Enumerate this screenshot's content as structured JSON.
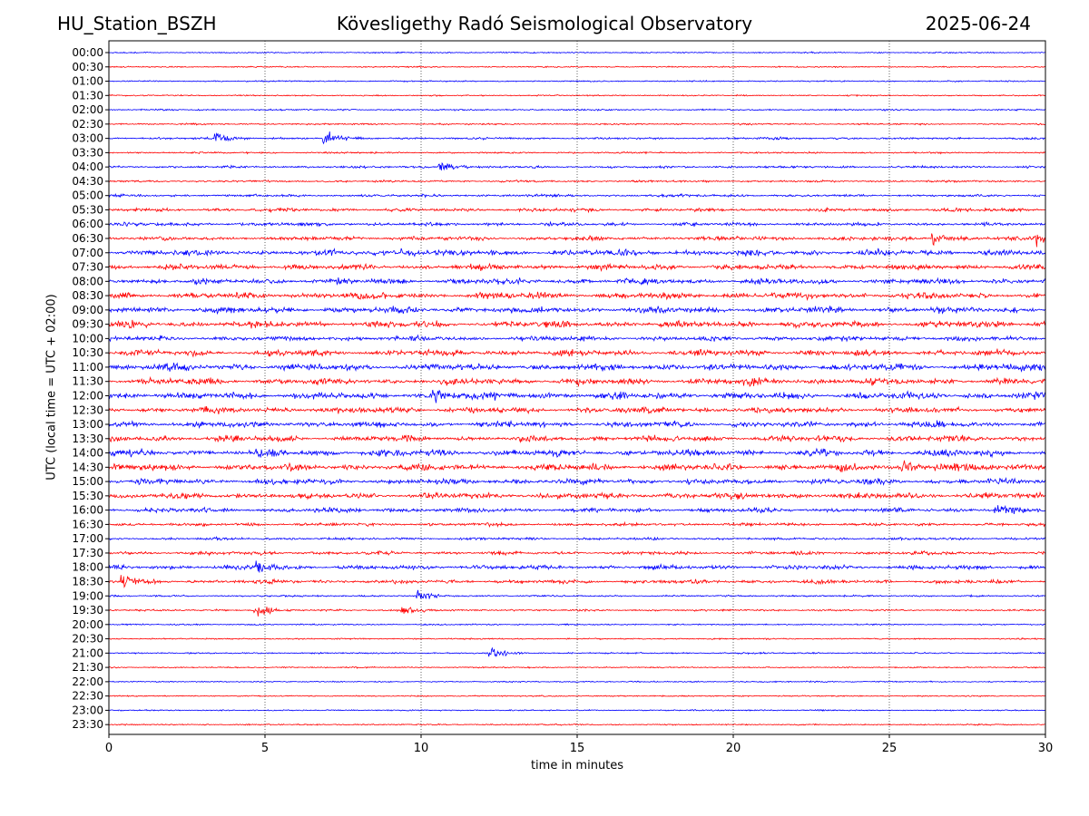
{
  "header": {
    "station": "HU_Station_BSZH",
    "title": "Kövesligethy Radó Seismological Observatory",
    "date": "2025-06-24"
  },
  "chart_data": {
    "type": "line",
    "title": "Kövesligethy Radó Seismological Observatory",
    "xlabel": "time in minutes",
    "ylabel": "UTC (local time = UTC + 02:00)",
    "xlim": [
      0,
      30
    ],
    "xticks": [
      0,
      5,
      10,
      15,
      20,
      25,
      30
    ],
    "vertical_gridlines": [
      5,
      10,
      15,
      20,
      25
    ],
    "grid": "dotted vertical",
    "row_colors": [
      "#0000ff",
      "#ff0000"
    ],
    "rows": [
      {
        "label": "00:00",
        "activity": 0.08
      },
      {
        "label": "00:30",
        "activity": 0.08
      },
      {
        "label": "01:00",
        "activity": 0.08
      },
      {
        "label": "01:30",
        "activity": 0.08
      },
      {
        "label": "02:00",
        "activity": 0.12
      },
      {
        "label": "02:30",
        "activity": 0.12
      },
      {
        "label": "03:00",
        "activity": 0.22
      },
      {
        "label": "03:30",
        "activity": 0.14
      },
      {
        "label": "04:00",
        "activity": 0.22
      },
      {
        "label": "04:30",
        "activity": 0.18
      },
      {
        "label": "05:00",
        "activity": 0.26
      },
      {
        "label": "05:30",
        "activity": 0.4
      },
      {
        "label": "06:00",
        "activity": 0.4
      },
      {
        "label": "06:30",
        "activity": 0.5
      },
      {
        "label": "07:00",
        "activity": 0.75
      },
      {
        "label": "07:30",
        "activity": 0.7
      },
      {
        "label": "08:00",
        "activity": 0.7
      },
      {
        "label": "08:30",
        "activity": 0.8
      },
      {
        "label": "09:00",
        "activity": 0.85
      },
      {
        "label": "09:30",
        "activity": 0.85
      },
      {
        "label": "10:00",
        "activity": 0.6
      },
      {
        "label": "10:30",
        "activity": 0.8
      },
      {
        "label": "11:00",
        "activity": 0.9
      },
      {
        "label": "11:30",
        "activity": 0.85
      },
      {
        "label": "12:00",
        "activity": 0.9
      },
      {
        "label": "12:30",
        "activity": 0.75
      },
      {
        "label": "13:00",
        "activity": 0.75
      },
      {
        "label": "13:30",
        "activity": 0.75
      },
      {
        "label": "14:00",
        "activity": 0.9
      },
      {
        "label": "14:30",
        "activity": 0.9
      },
      {
        "label": "15:00",
        "activity": 0.7
      },
      {
        "label": "15:30",
        "activity": 0.75
      },
      {
        "label": "16:00",
        "activity": 0.55
      },
      {
        "label": "16:30",
        "activity": 0.35
      },
      {
        "label": "17:00",
        "activity": 0.25
      },
      {
        "label": "17:30",
        "activity": 0.4
      },
      {
        "label": "18:00",
        "activity": 0.55
      },
      {
        "label": "18:30",
        "activity": 0.45
      },
      {
        "label": "19:00",
        "activity": 0.14
      },
      {
        "label": "19:30",
        "activity": 0.16
      },
      {
        "label": "20:00",
        "activity": 0.1
      },
      {
        "label": "20:30",
        "activity": 0.08
      },
      {
        "label": "21:00",
        "activity": 0.12
      },
      {
        "label": "21:30",
        "activity": 0.07
      },
      {
        "label": "22:00",
        "activity": 0.07
      },
      {
        "label": "22:30",
        "activity": 0.07
      },
      {
        "label": "23:00",
        "activity": 0.08
      },
      {
        "label": "23:30",
        "activity": 0.08
      }
    ],
    "events": [
      {
        "row": "03:00",
        "minute": 3.5,
        "amp": 3.0
      },
      {
        "row": "03:00",
        "minute": 7.0,
        "amp": 3.5
      },
      {
        "row": "04:00",
        "minute": 10.7,
        "amp": 3.5
      },
      {
        "row": "06:30",
        "minute": 26.5,
        "amp": 2.5
      },
      {
        "row": "06:30",
        "minute": 29.8,
        "amp": 3.0
      },
      {
        "row": "07:00",
        "minute": 9.5,
        "amp": 2.5
      },
      {
        "row": "12:00",
        "minute": 10.5,
        "amp": 2.0
      },
      {
        "row": "14:30",
        "minute": 25.5,
        "amp": 3.0
      },
      {
        "row": "14:30",
        "minute": 26.6,
        "amp": 3.0
      },
      {
        "row": "16:00",
        "minute": 28.5,
        "amp": 2.5
      },
      {
        "row": "18:00",
        "minute": 4.8,
        "amp": 3.0
      },
      {
        "row": "18:30",
        "minute": 0.5,
        "amp": 3.0
      },
      {
        "row": "19:00",
        "minute": 10.0,
        "amp": 2.5
      },
      {
        "row": "19:30",
        "minute": 4.8,
        "amp": 2.5
      },
      {
        "row": "19:30",
        "minute": 9.5,
        "amp": 2.5
      },
      {
        "row": "21:00",
        "minute": 12.3,
        "amp": 2.5
      }
    ]
  }
}
